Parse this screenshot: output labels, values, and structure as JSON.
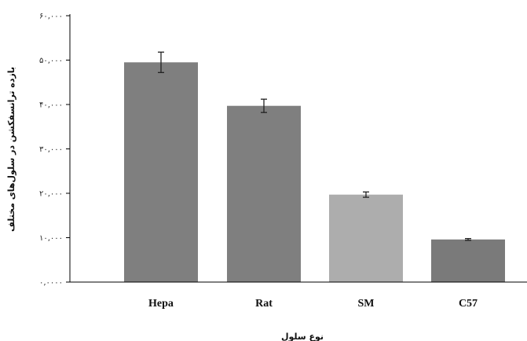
{
  "chart_data": {
    "type": "bar",
    "title": "",
    "xlabel": "نوع سلول",
    "ylabel": "بازده ترانسفکشن در سلول‌های مختلف",
    "categories": [
      "Hepa",
      "Rat",
      "SM",
      "C57"
    ],
    "values": [
      49500,
      39700,
      19700,
      9600
    ],
    "error": [
      2300,
      1500,
      600,
      200
    ],
    "colors": [
      "#7f7f7f",
      "#7f7f7f",
      "#adadad",
      "#7a7a7a"
    ],
    "ylim": [
      0,
      60000
    ],
    "yticks": [
      0,
      10000,
      20000,
      30000,
      40000,
      50000,
      60000
    ],
    "ytick_labels": [
      "۰,۰۰۰۰",
      "۱۰,۰۰۰",
      "۲۰,۰۰۰",
      "۳۰,۰۰۰",
      "۴۰,۰۰۰",
      "۵۰,۰۰۰",
      "۶۰,۰۰۰"
    ],
    "grid": false,
    "legend": "none"
  }
}
